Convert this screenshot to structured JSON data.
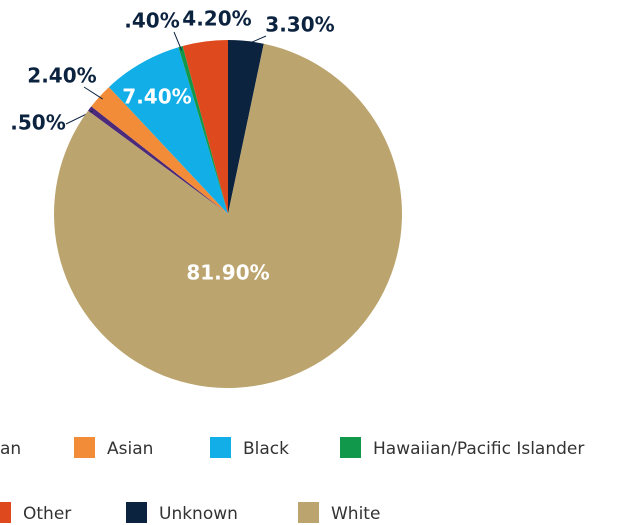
{
  "chart_data": {
    "type": "pie",
    "categories": [
      "an",
      "Asian",
      "Black",
      "Hawaiian/Pacific Islander",
      "Other",
      "Unknown",
      "White"
    ],
    "values": [
      0.5,
      2.4,
      7.4,
      0.4,
      4.2,
      3.3,
      81.9
    ],
    "value_labels": [
      ".50%",
      "2.40%",
      "7.40%",
      ".40%",
      "4.20%",
      "3.30%",
      "81.90%"
    ],
    "colors": [
      "#4b2a7b",
      "#f28c38",
      "#12aee8",
      "#11984a",
      "#de4a1e",
      "#0c2340",
      "#bba46d"
    ]
  }
}
